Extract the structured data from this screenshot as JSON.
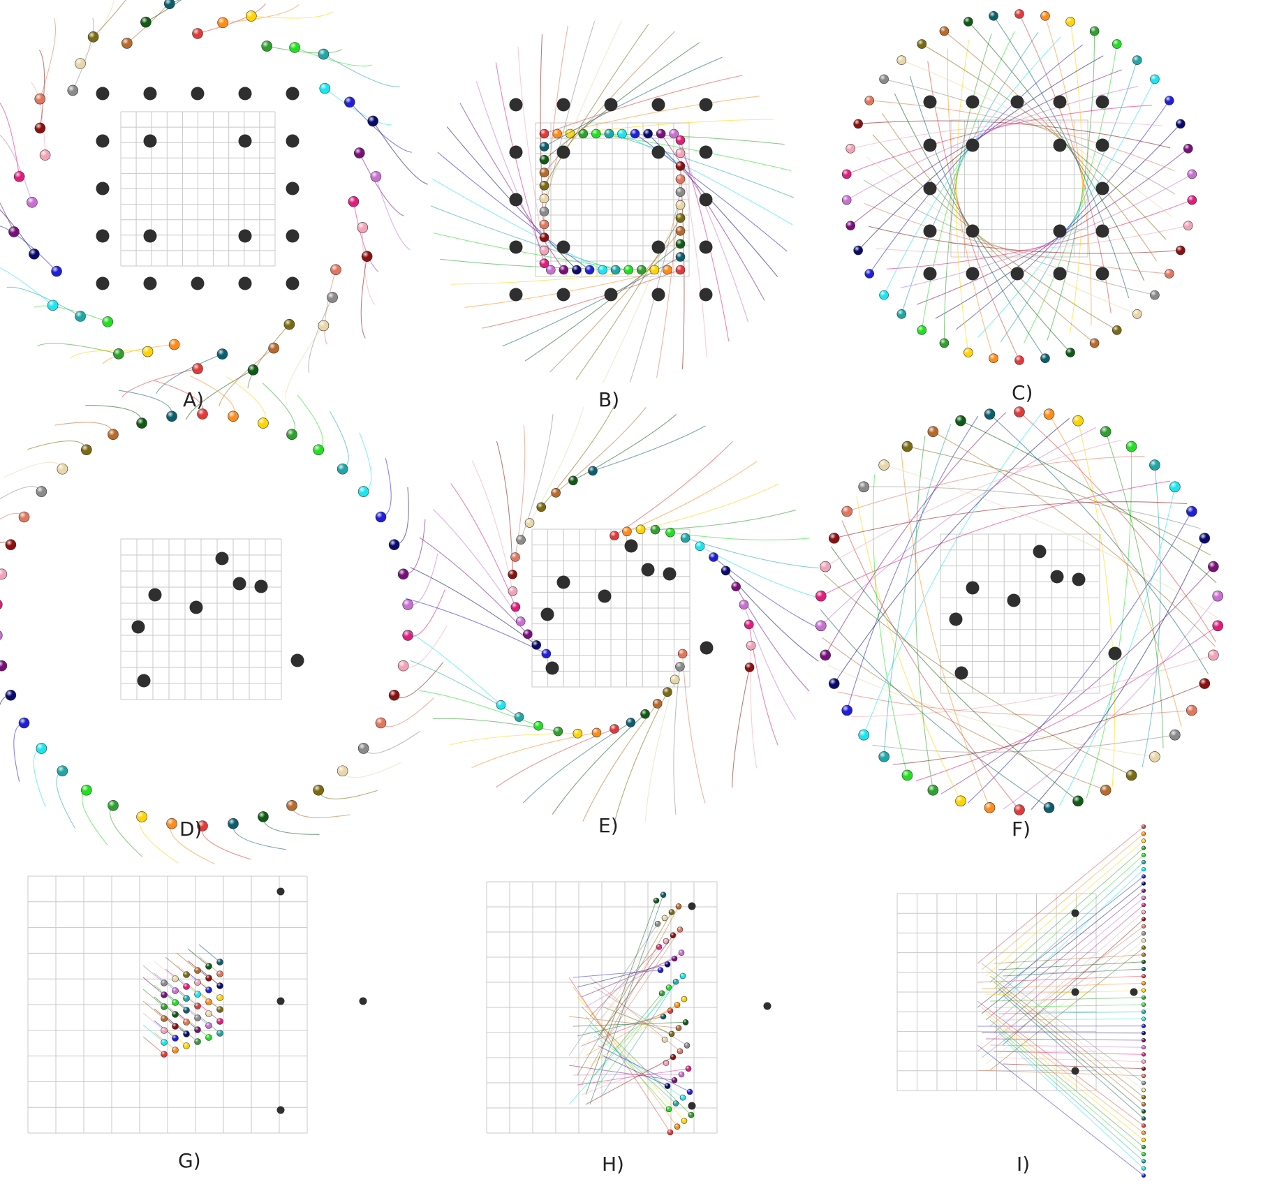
{
  "figure": {
    "colors": [
      "#e03a3a",
      "#ff8c1a",
      "#ffd400",
      "#2ea02e",
      "#21e021",
      "#1fa6a6",
      "#19e6f0",
      "#1f1fd6",
      "#0a0a6e",
      "#7a0f7a",
      "#c86fd2",
      "#e21c7c",
      "#f2a3b8",
      "#8b1010",
      "#e0765c",
      "#8a8a8a",
      "#e8d6a8",
      "#7a6a10",
      "#b76a2a",
      "#0f5a14",
      "#0b5e6e"
    ],
    "panels": [
      {
        "label": "A)"
      },
      {
        "label": "B)"
      },
      {
        "label": "C)"
      },
      {
        "label": "D)"
      },
      {
        "label": "E)"
      },
      {
        "label": "F)"
      },
      {
        "label": "G)"
      },
      {
        "label": "H)"
      },
      {
        "label": "I)"
      }
    ]
  }
}
